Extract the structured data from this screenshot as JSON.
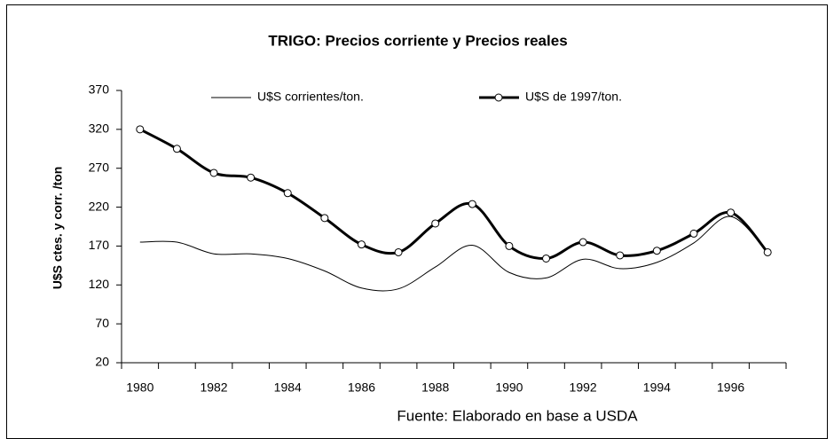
{
  "chart_data": {
    "type": "line",
    "title": "TRIGO: Precios corriente y  Precios reales",
    "y_label": "U$S ctes. y corr. /ton",
    "source": "Fuente: Elaborado en base a USDA",
    "categories": [
      "1980",
      null,
      "1982",
      null,
      "1984",
      null,
      "1986",
      null,
      "1988",
      null,
      "1990",
      null,
      "1992",
      null,
      "1994",
      null,
      "1996",
      null
    ],
    "series": [
      {
        "name": "U$S corrientes/ton.",
        "color": "#000000",
        "width": 1,
        "marker": false,
        "values": [
          175,
          175,
          160,
          160,
          154,
          138,
          116,
          115,
          143,
          171,
          136,
          129,
          153,
          141,
          149,
          174,
          208,
          162
        ]
      },
      {
        "name": "U$S de 1997/ton.",
        "color": "#000000",
        "width": 3,
        "marker": true,
        "values": [
          320,
          295,
          264,
          258,
          238,
          206,
          172,
          162,
          199,
          224,
          170,
          154,
          175,
          158,
          164,
          186,
          213,
          162
        ]
      }
    ],
    "ylim": [
      20,
      370
    ],
    "yticks": [
      20,
      70,
      120,
      170,
      220,
      270,
      320,
      370
    ],
    "grid": false,
    "smooth": true
  }
}
